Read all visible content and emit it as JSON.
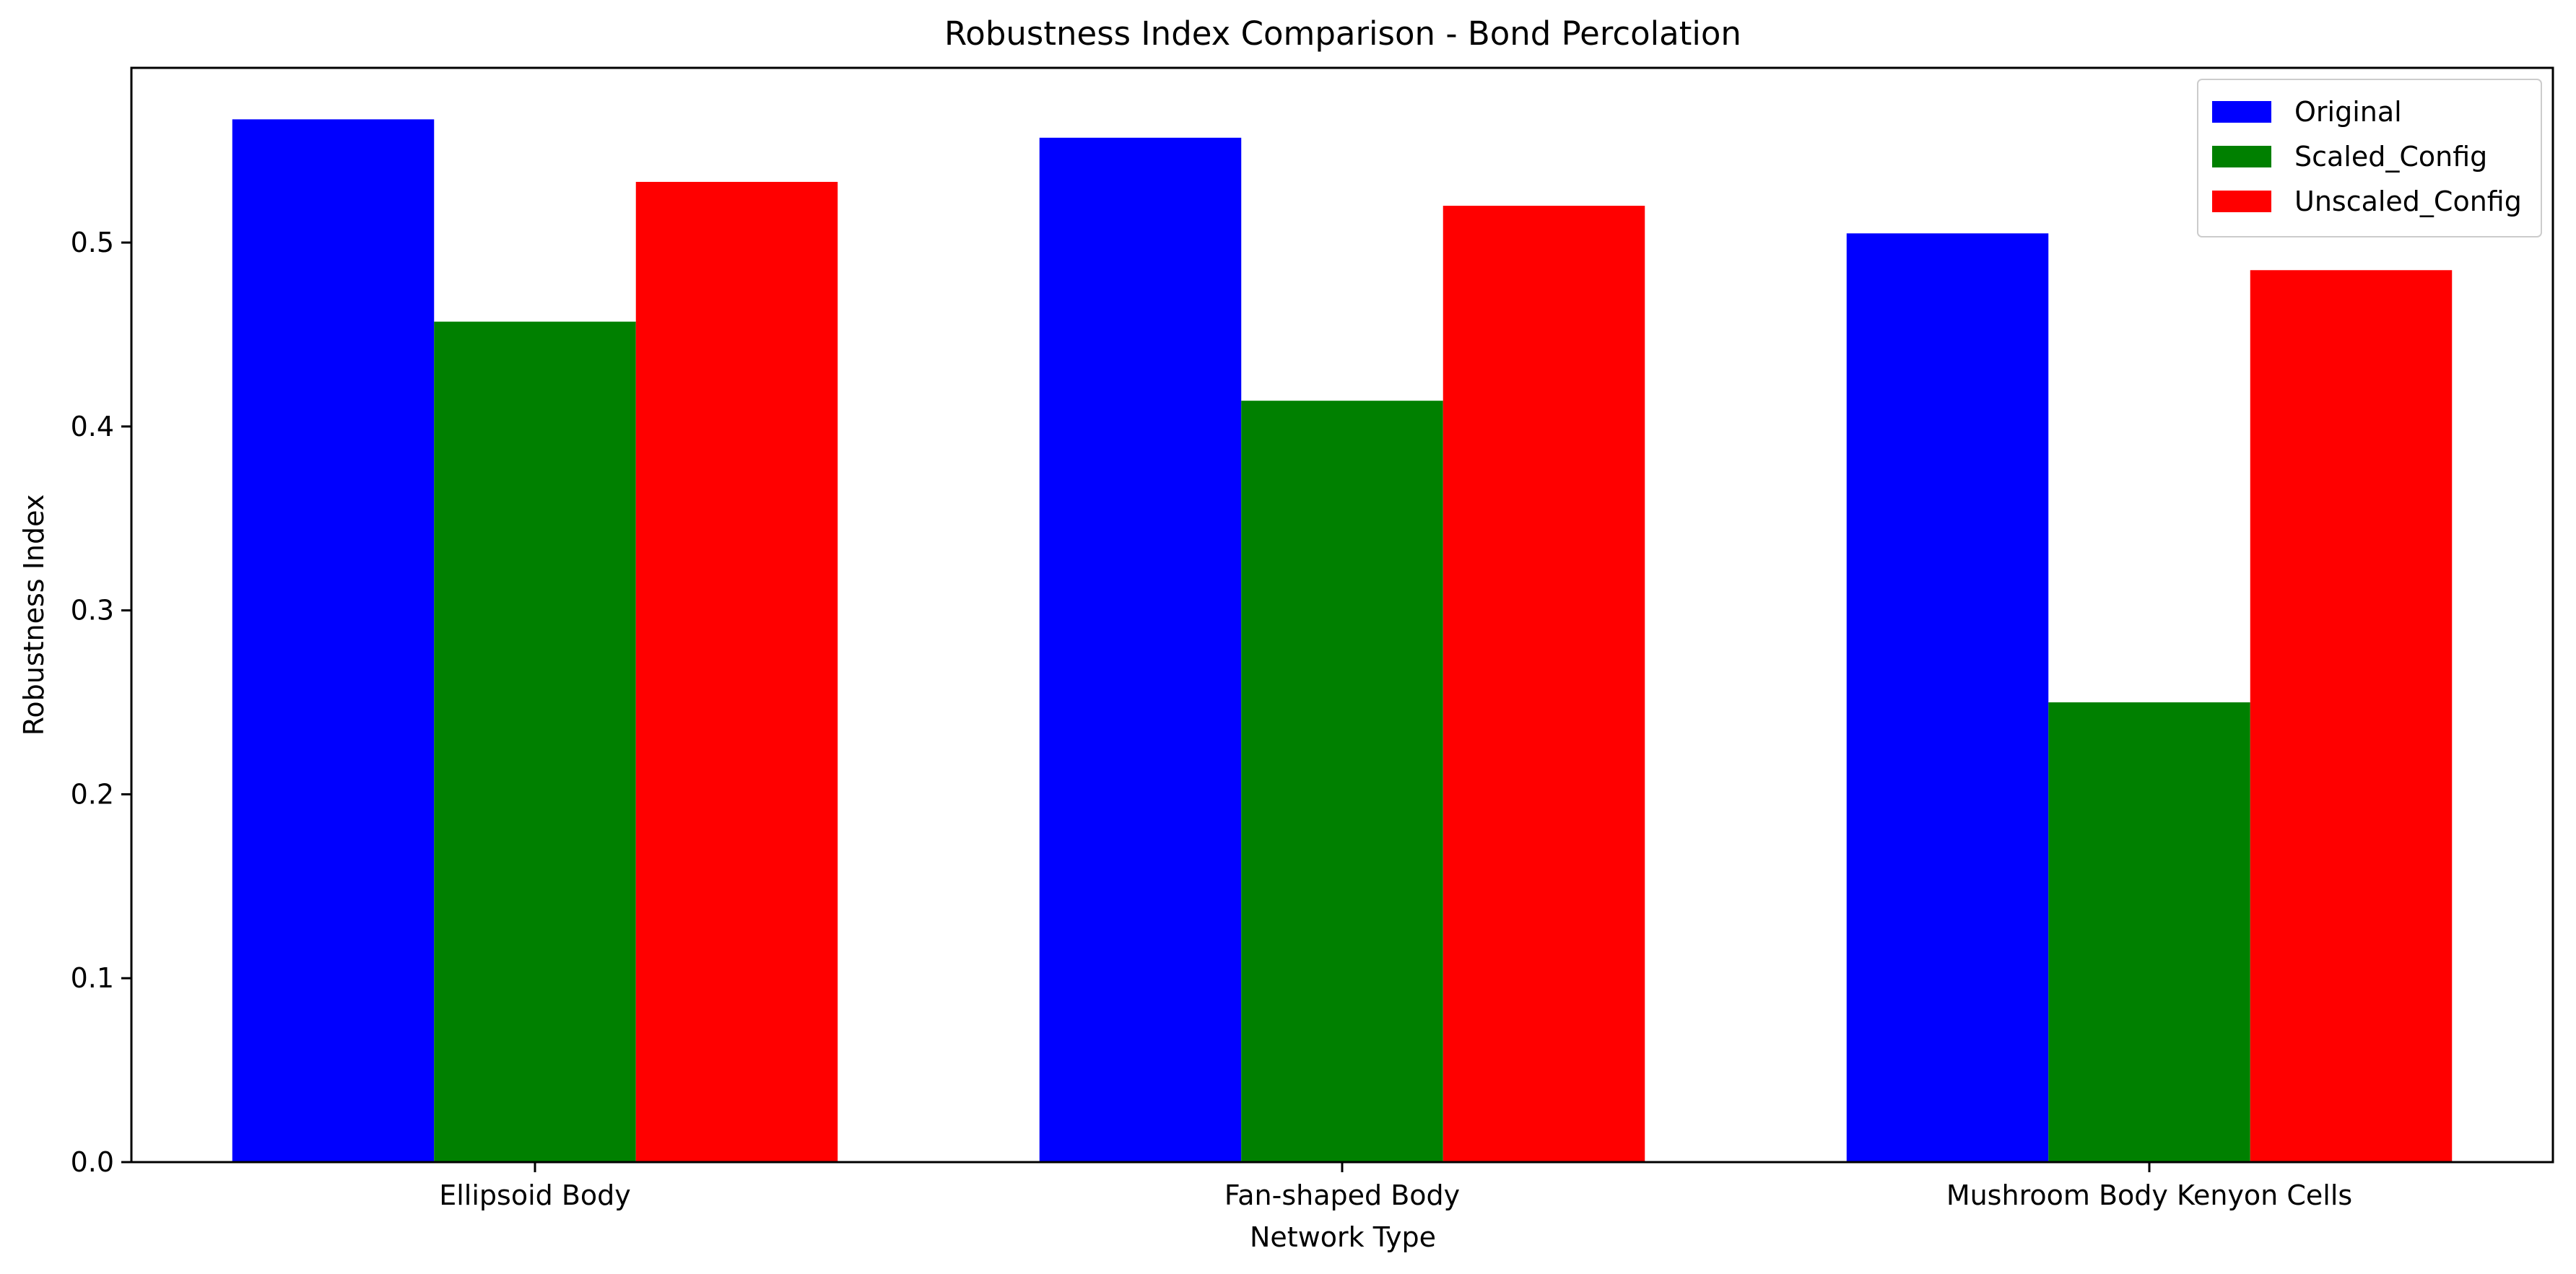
{
  "chart_data": {
    "type": "bar",
    "title": "Robustness Index Comparison - Bond Percolation",
    "xlabel": "Network Type",
    "ylabel": "Robustness Index",
    "categories": [
      "Ellipsoid Body",
      "Fan-shaped Body",
      "Mushroom Body Kenyon Cells"
    ],
    "series": [
      {
        "name": "Original",
        "color": "#0000ff",
        "values": [
          0.567,
          0.557,
          0.505
        ]
      },
      {
        "name": "Scaled_Config",
        "color": "#008000",
        "values": [
          0.457,
          0.414,
          0.25
        ]
      },
      {
        "name": "Unscaled_Config",
        "color": "#ff0000",
        "values": [
          0.533,
          0.52,
          0.485
        ]
      }
    ],
    "ylim": [
      0,
      0.595
    ],
    "yticks": [
      0.0,
      0.1,
      0.2,
      0.3,
      0.4,
      0.5
    ],
    "ytick_labels": [
      "0.0",
      "0.1",
      "0.2",
      "0.3",
      "0.4",
      "0.5"
    ],
    "grid": false,
    "legend_position": "top-right"
  }
}
